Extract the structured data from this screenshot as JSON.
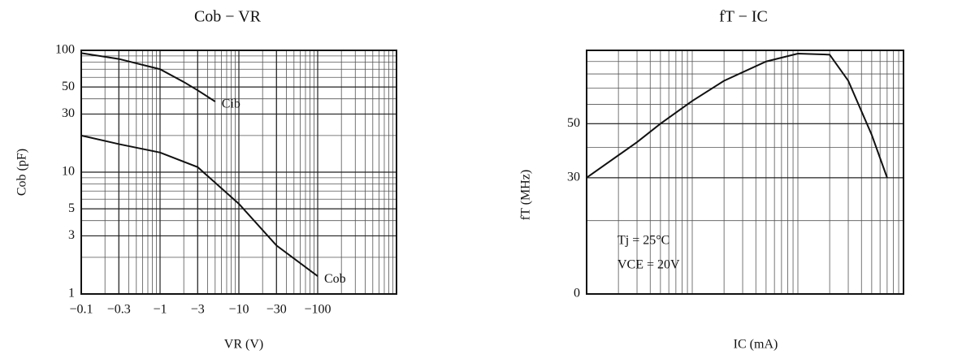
{
  "chart_data": [
    {
      "type": "line",
      "title": "Cob − VR",
      "x_label": "VR (V)",
      "y_label": "Cob (pF)",
      "x_scale": "log",
      "y_scale": "log",
      "grid": true,
      "xlim": [
        -0.1,
        -1000
      ],
      "ylim": [
        1,
        100
      ],
      "xticks": [
        {
          "value": -0.1,
          "label": "−0.1"
        },
        {
          "value": -0.3,
          "label": "−0.3"
        },
        {
          "value": -1,
          "label": "−1"
        },
        {
          "value": -3,
          "label": "−3"
        },
        {
          "value": -10,
          "label": "−10"
        },
        {
          "value": -30,
          "label": "−30"
        },
        {
          "value": -100,
          "label": "−100"
        }
      ],
      "yticks": [
        1,
        3,
        5,
        10,
        30,
        50,
        100
      ],
      "series": [
        {
          "name": "Cib",
          "color": "#111111",
          "x": [
            -0.1,
            -0.3,
            -1,
            -2,
            -3,
            -5
          ],
          "values": [
            95,
            85,
            70,
            55,
            47,
            38
          ]
        },
        {
          "name": "Cob",
          "color": "#111111",
          "x": [
            -0.1,
            -0.3,
            -1,
            -3,
            -10,
            -30,
            -100
          ],
          "values": [
            20,
            17,
            14.5,
            11,
            5.5,
            2.5,
            1.4
          ]
        }
      ]
    },
    {
      "type": "line",
      "title": "fT − IC",
      "x_label": "IC (mA)",
      "y_label": "fT (MHz)",
      "x_scale": "log",
      "y_scale": "log",
      "grid": true,
      "xlim": [
        0.1,
        100
      ],
      "ylim": [
        10,
        100
      ],
      "yticks": [
        30,
        50
      ],
      "origin_label": "0",
      "annotations": [
        "Tj = 25°C",
        "VCE = 20V"
      ],
      "series": [
        {
          "name": "fT",
          "color": "#111111",
          "x": [
            0.1,
            0.3,
            0.5,
            1,
            2,
            5,
            10,
            20,
            30,
            50,
            70
          ],
          "values": [
            30,
            42,
            50,
            62,
            75,
            90,
            97,
            96,
            75,
            45,
            30
          ]
        }
      ]
    }
  ]
}
